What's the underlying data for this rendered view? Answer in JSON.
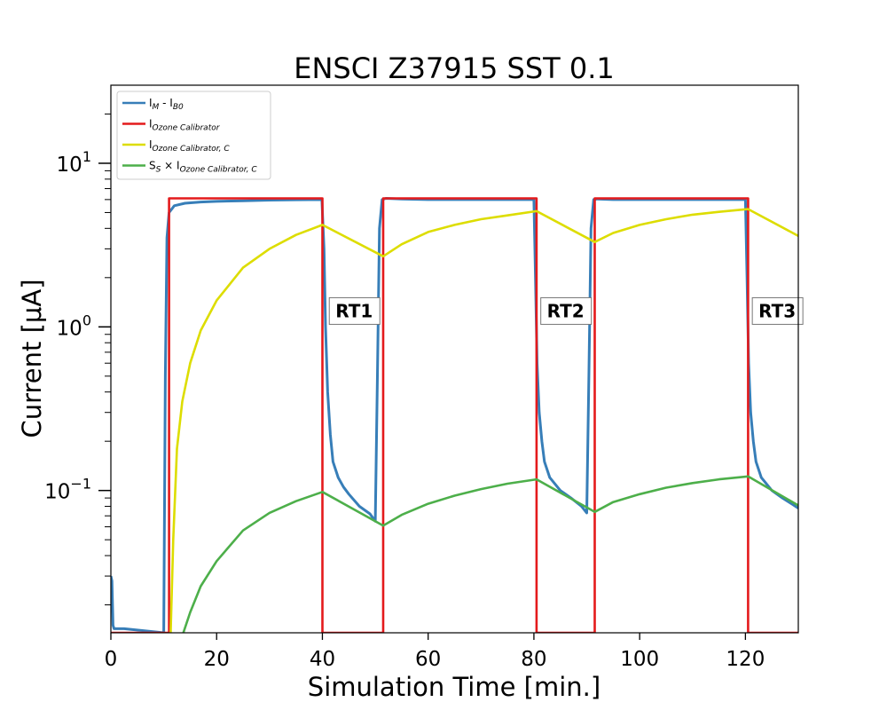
{
  "chart_data": {
    "type": "line",
    "title": "ENSCI Z37915 SST 0.1",
    "xlabel": "Simulation Time [min.]",
    "ylabel": "Current [μA]",
    "xlim": [
      0,
      130
    ],
    "ylim": [
      0.0135,
      30
    ],
    "yscale": "log",
    "grid": false,
    "legend_position": "upper-left",
    "x_ticks": [
      0,
      20,
      40,
      60,
      80,
      100,
      120
    ],
    "y_ticks": [
      {
        "value": 0.1,
        "base": "10",
        "exp": "−1"
      },
      {
        "value": 1,
        "base": "10",
        "exp": "0"
      },
      {
        "value": 10,
        "base": "10",
        "exp": "1"
      }
    ],
    "series": [
      {
        "name": "I_M - I_B0",
        "legend": {
          "main": "I",
          "sub": "M",
          "mid": " - I",
          "sub2": "B0"
        },
        "color": "#377eb8",
        "x": [
          0,
          0.2,
          0.4,
          0.6,
          2.5,
          10.0,
          10.3,
          10.6,
          11.0,
          12.0,
          14.0,
          17.0,
          20.0,
          25.0,
          30.0,
          35.0,
          39.9,
          40.3,
          40.6,
          41.0,
          41.5,
          42.0,
          43.0,
          44.0,
          45.0,
          47.0,
          49.0,
          50.0,
          50.4,
          50.8,
          51.3,
          52.0,
          55.0,
          60.0,
          70.0,
          80.0,
          80.3,
          80.6,
          81.0,
          81.5,
          82.0,
          83.0,
          85.0,
          87.0,
          89.0,
          90.0,
          90.4,
          90.8,
          91.3,
          92.0,
          95.0,
          100.0,
          110.0,
          120.0,
          120.3,
          120.6,
          121.0,
          121.5,
          122.0,
          123.0,
          125.0,
          127.0,
          129.0,
          130.0
        ],
        "y": [
          0.03,
          0.028,
          0.015,
          0.0143,
          0.0143,
          0.0135,
          0.5,
          3.5,
          5.0,
          5.5,
          5.7,
          5.8,
          5.85,
          5.9,
          5.95,
          5.98,
          6.0,
          3.0,
          1.0,
          0.4,
          0.22,
          0.15,
          0.12,
          0.105,
          0.095,
          0.08,
          0.072,
          0.065,
          0.5,
          4.0,
          6.0,
          6.1,
          6.05,
          6.0,
          6.0,
          6.0,
          2.0,
          0.6,
          0.3,
          0.2,
          0.15,
          0.12,
          0.1,
          0.09,
          0.08,
          0.073,
          0.5,
          4.0,
          6.0,
          6.05,
          6.0,
          6.0,
          6.0,
          6.0,
          2.0,
          0.6,
          0.3,
          0.2,
          0.15,
          0.12,
          0.1,
          0.09,
          0.082,
          0.078
        ]
      },
      {
        "name": "I_Ozone Calibrator",
        "legend": {
          "main": "I",
          "sub": "Ozone Calibrator"
        },
        "color": "#e41a1c",
        "x": [
          0,
          11,
          11,
          40,
          40,
          51.5,
          51.5,
          80.5,
          80.5,
          91.5,
          91.5,
          120.5,
          120.5,
          130
        ],
        "y": [
          0.0135,
          0.0135,
          6.1,
          6.1,
          0.0135,
          0.0135,
          6.1,
          6.1,
          0.0135,
          0.0135,
          6.1,
          6.1,
          0.0135,
          0.0135
        ]
      },
      {
        "name": "I_Ozone Calibrator, C",
        "legend": {
          "main": "I",
          "sub": "Ozone Calibrator, C"
        },
        "color": "#dddd00",
        "x": [
          11.3,
          11.8,
          12.5,
          13.5,
          15,
          17,
          20,
          25,
          30,
          35,
          40,
          51.5,
          55,
          60,
          65,
          70,
          75,
          80.5,
          91.5,
          95,
          100,
          105,
          110,
          115,
          120.5,
          130
        ],
        "y": [
          0.0135,
          0.05,
          0.18,
          0.35,
          0.6,
          0.95,
          1.45,
          2.3,
          3.0,
          3.65,
          4.2,
          2.7,
          3.2,
          3.8,
          4.2,
          4.55,
          4.8,
          5.1,
          3.3,
          3.75,
          4.2,
          4.55,
          4.85,
          5.05,
          5.25,
          3.6
        ]
      },
      {
        "name": "S_S × I_Ozone Calibrator, C",
        "legend": {
          "main": "S",
          "sub": "S",
          "mid": " × I",
          "sub2": "Ozone Calibrator, C"
        },
        "color": "#4daf4a",
        "x": [
          13.7,
          15,
          17,
          20,
          25,
          30,
          35,
          40,
          51.5,
          55,
          60,
          65,
          70,
          75,
          80.5,
          91.5,
          95,
          100,
          105,
          110,
          115,
          120.5,
          130
        ],
        "y": [
          0.0135,
          0.018,
          0.026,
          0.037,
          0.057,
          0.073,
          0.086,
          0.098,
          0.061,
          0.071,
          0.083,
          0.093,
          0.102,
          0.11,
          0.117,
          0.074,
          0.085,
          0.095,
          0.104,
          0.111,
          0.117,
          0.122,
          0.081
        ]
      }
    ],
    "annotations": [
      {
        "text": "RT1",
        "x": 46.0,
        "y": 1.25
      },
      {
        "text": "RT2",
        "x": 86.0,
        "y": 1.25
      },
      {
        "text": "RT3",
        "x": 126.0,
        "y": 1.25
      }
    ]
  }
}
